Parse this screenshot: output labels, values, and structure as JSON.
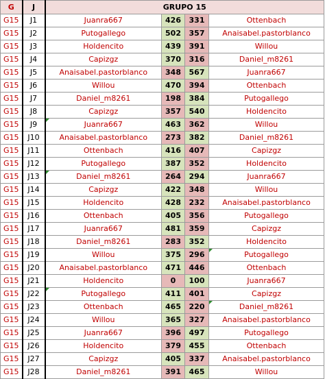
{
  "header": {
    "col_g": "G",
    "col_j": "J",
    "title": "GRUPO 15"
  },
  "colors": {
    "group_text": "#c00000",
    "win_fill": "#d7e4bc",
    "lose_fill": "#e6b9b8",
    "header_fill": "#f2dcdb"
  },
  "rows": [
    {
      "g": "G15",
      "j": "J1",
      "home": "Juanra667",
      "hs": "426",
      "as": "331",
      "away": "Ottenbach",
      "w": "h"
    },
    {
      "g": "G15",
      "j": "J2",
      "home": "Putogallego",
      "hs": "502",
      "as": "357",
      "away": "Anaisabel.pastorblanco",
      "w": "h"
    },
    {
      "g": "G15",
      "j": "J3",
      "home": "Holdencito",
      "hs": "439",
      "as": "391",
      "away": "Willou",
      "w": "h"
    },
    {
      "g": "G15",
      "j": "J4",
      "home": "Capizgz",
      "hs": "370",
      "as": "316",
      "away": "Daniel_m8261",
      "w": "h"
    },
    {
      "g": "G15",
      "j": "J5",
      "home": "Anaisabel.pastorblanco",
      "hs": "348",
      "as": "567",
      "away": "Juanra667",
      "w": "a"
    },
    {
      "g": "G15",
      "j": "J6",
      "home": "Willou",
      "hs": "470",
      "as": "394",
      "away": "Ottenbach",
      "w": "h"
    },
    {
      "g": "G15",
      "j": "J7",
      "home": "Daniel_m8261",
      "hs": "198",
      "as": "384",
      "away": "Putogallego",
      "w": "a"
    },
    {
      "g": "G15",
      "j": "J8",
      "home": "Capizgz",
      "hs": "357",
      "as": "540",
      "away": "Holdencito",
      "w": "a"
    },
    {
      "g": "G15",
      "j": "J9",
      "home": "Juanra667",
      "hs": "463",
      "as": "362",
      "away": "Willou",
      "w": "h"
    },
    {
      "g": "G15",
      "j": "J10",
      "home": "Anaisabel.pastorblanco",
      "hs": "273",
      "as": "382",
      "away": "Daniel_m8261",
      "w": "a"
    },
    {
      "g": "G15",
      "j": "J11",
      "home": "Ottenbach",
      "hs": "416",
      "as": "407",
      "away": "Capizgz",
      "w": "h"
    },
    {
      "g": "G15",
      "j": "J12",
      "home": "Putogallego",
      "hs": "387",
      "as": "352",
      "away": "Holdencito",
      "w": "h"
    },
    {
      "g": "G15",
      "j": "J13",
      "home": "Daniel_m8261",
      "hs": "264",
      "as": "294",
      "away": "Juanra667",
      "w": "a"
    },
    {
      "g": "G15",
      "j": "J14",
      "home": "Capizgz",
      "hs": "422",
      "as": "348",
      "away": "Willou",
      "w": "h"
    },
    {
      "g": "G15",
      "j": "J15",
      "home": "Holdencito",
      "hs": "428",
      "as": "232",
      "away": "Anaisabel.pastorblanco",
      "w": "h"
    },
    {
      "g": "G15",
      "j": "J16",
      "home": "Ottenbach",
      "hs": "405",
      "as": "356",
      "away": "Putogallego",
      "w": "h"
    },
    {
      "g": "G15",
      "j": "J17",
      "home": "Juanra667",
      "hs": "481",
      "as": "359",
      "away": "Capizgz",
      "w": "h"
    },
    {
      "g": "G15",
      "j": "J18",
      "home": "Daniel_m8261",
      "hs": "283",
      "as": "352",
      "away": "Holdencito",
      "w": "a"
    },
    {
      "g": "G15",
      "j": "J19",
      "home": "Willou",
      "hs": "375",
      "as": "296",
      "away": "Putogallego",
      "w": "h"
    },
    {
      "g": "G15",
      "j": "J20",
      "home": "Anaisabel.pastorblanco",
      "hs": "471",
      "as": "446",
      "away": "Ottenbach",
      "w": "h"
    },
    {
      "g": "G15",
      "j": "J21",
      "home": "Holdencito",
      "hs": "0",
      "as": "100",
      "away": "Juanra667",
      "w": "a"
    },
    {
      "g": "G15",
      "j": "J22",
      "home": "Putogallego",
      "hs": "411",
      "as": "401",
      "away": "Capizgz",
      "w": "h"
    },
    {
      "g": "G15",
      "j": "J23",
      "home": "Ottenbach",
      "hs": "465",
      "as": "220",
      "away": "Daniel_m8261",
      "w": "h"
    },
    {
      "g": "G15",
      "j": "J24",
      "home": "Willou",
      "hs": "365",
      "as": "327",
      "away": "Anaisabel.pastorblanco",
      "w": "h"
    },
    {
      "g": "G15",
      "j": "J25",
      "home": "Juanra667",
      "hs": "396",
      "as": "497",
      "away": "Putogallego",
      "w": "a"
    },
    {
      "g": "G15",
      "j": "J26",
      "home": "Holdencito",
      "hs": "379",
      "as": "455",
      "away": "Ottenbach",
      "w": "a"
    },
    {
      "g": "G15",
      "j": "J27",
      "home": "Capizgz",
      "hs": "405",
      "as": "337",
      "away": "Anaisabel.pastorblanco",
      "w": "h"
    },
    {
      "g": "G15",
      "j": "J28",
      "home": "Daniel_m8261",
      "hs": "391",
      "as": "465",
      "away": "Willou",
      "w": "a"
    }
  ]
}
